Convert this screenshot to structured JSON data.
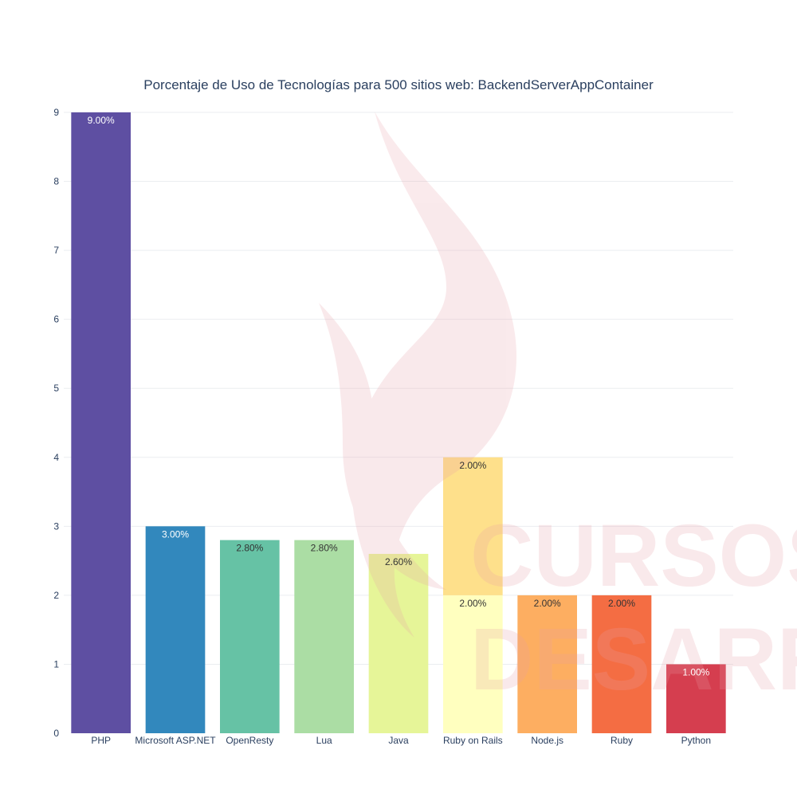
{
  "chart_data": {
    "type": "bar",
    "title": "Porcentaje de Uso de Tecnologías para 500 sitios web: BackendServerAppContainer",
    "xlabel": "",
    "ylabel": "",
    "ylim": [
      0,
      9
    ],
    "yticks": [
      "0",
      "1",
      "2",
      "3",
      "4",
      "5",
      "6",
      "7",
      "8",
      "9"
    ],
    "grid": true,
    "legend": "none",
    "categories": [
      "PHP",
      "Microsoft ASP.NET",
      "OpenResty",
      "Lua",
      "Java",
      "Ruby on Rails",
      "Node.js",
      "Ruby",
      "Python"
    ],
    "bars": [
      {
        "category": "PHP",
        "base": 0,
        "value": 9.0,
        "label": "9.00%",
        "color": "#5e4fa2",
        "label_color": "#ffffff"
      },
      {
        "category": "Microsoft ASP.NET",
        "base": 0,
        "value": 3.0,
        "label": "3.00%",
        "color": "#3288bd",
        "label_color": "#ffffff"
      },
      {
        "category": "OpenResty",
        "base": 0,
        "value": 2.8,
        "label": "2.80%",
        "color": "#66c2a5",
        "label_color": "#333333"
      },
      {
        "category": "Lua",
        "base": 0,
        "value": 2.8,
        "label": "2.80%",
        "color": "#abdda4",
        "label_color": "#333333"
      },
      {
        "category": "Java",
        "base": 0,
        "value": 2.6,
        "label": "2.60%",
        "color": "#e6f598",
        "label_color": "#333333"
      },
      {
        "category": "Ruby on Rails",
        "base": 0,
        "value": 2.0,
        "label": "2.00%",
        "color": "#ffffbf",
        "label_color": "#333333"
      },
      {
        "category": "Ruby on Rails",
        "base": 2.0,
        "value": 2.0,
        "label": "2.00%",
        "color": "#fee08b",
        "label_color": "#333333"
      },
      {
        "category": "Node.js",
        "base": 0,
        "value": 2.0,
        "label": "2.00%",
        "color": "#fdae61",
        "label_color": "#333333"
      },
      {
        "category": "Ruby",
        "base": 0,
        "value": 2.0,
        "label": "2.00%",
        "color": "#f46d43",
        "label_color": "#333333"
      },
      {
        "category": "Python",
        "base": 0,
        "value": 1.0,
        "label": "1.00%",
        "color": "#d53e4f",
        "label_color": "#ffffff"
      }
    ]
  },
  "watermark": {
    "lines": [
      "CURSOS DE",
      "DESARROLLO"
    ],
    "color": "#e8a0a8"
  }
}
